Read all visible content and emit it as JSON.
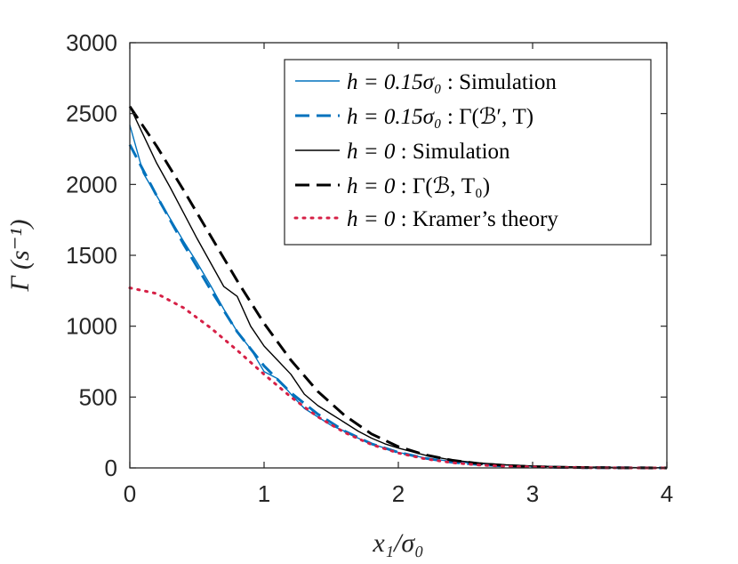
{
  "chart_data": {
    "type": "line",
    "xlabel": "x₁/σ₀",
    "ylabel": "Γ (s⁻¹)",
    "xlim": [
      0,
      4
    ],
    "ylim": [
      0,
      3000
    ],
    "xticks": [
      0,
      1,
      2,
      3,
      4
    ],
    "yticks": [
      0,
      500,
      1000,
      1500,
      2000,
      2500,
      3000
    ],
    "grid": false,
    "legend_position": "top-right",
    "series": [
      {
        "name": "h = 0.15σ₀ : Simulation",
        "color": "#0072BD",
        "style": "solid",
        "width": "thin",
        "x": [
          0,
          0.1,
          0.2,
          0.3,
          0.4,
          0.5,
          0.6,
          0.7,
          0.8,
          0.9,
          1.0,
          1.1,
          1.2,
          1.3,
          1.4,
          1.5,
          1.6,
          1.7,
          1.8,
          1.9,
          2.0,
          2.2,
          2.4,
          2.6,
          2.8,
          3.0,
          3.2,
          3.4,
          3.6,
          3.8,
          4.0
        ],
        "y": [
          2420,
          2080,
          1920,
          1760,
          1600,
          1450,
          1290,
          1120,
          960,
          840,
          680,
          630,
          520,
          420,
          360,
          300,
          260,
          210,
          170,
          140,
          110,
          70,
          45,
          30,
          20,
          12,
          8,
          5,
          3,
          2,
          1
        ]
      },
      {
        "name": "h = 0.15σ₀ : Γ(ℬ′, T)",
        "color": "#0072BD",
        "style": "dashed",
        "width": "thick",
        "x": [
          0,
          0.2,
          0.4,
          0.6,
          0.8,
          1.0,
          1.2,
          1.4,
          1.6,
          1.8,
          2.0,
          2.2,
          2.4,
          2.6,
          2.8,
          3.0,
          3.2,
          3.4,
          3.6,
          3.8,
          4.0
        ],
        "y": [
          2280,
          1920,
          1580,
          1260,
          960,
          720,
          530,
          380,
          260,
          170,
          110,
          68,
          40,
          23,
          13,
          7,
          4,
          2,
          1,
          0.5,
          0.2
        ]
      },
      {
        "name": "h = 0 : Simulation",
        "color": "#000000",
        "style": "solid",
        "width": "thin",
        "x": [
          0,
          0.1,
          0.2,
          0.3,
          0.4,
          0.5,
          0.6,
          0.7,
          0.8,
          0.9,
          1.0,
          1.1,
          1.2,
          1.3,
          1.4,
          1.5,
          1.6,
          1.7,
          1.8,
          1.9,
          2.0,
          2.2,
          2.4,
          2.6,
          2.8,
          3.0,
          3.2,
          3.4,
          3.6,
          3.8,
          4.0
        ],
        "y": [
          2550,
          2350,
          2150,
          1980,
          1800,
          1620,
          1450,
          1280,
          1210,
          1000,
          860,
          760,
          660,
          520,
          440,
          380,
          320,
          260,
          210,
          170,
          140,
          90,
          55,
          35,
          22,
          14,
          9,
          6,
          4,
          2,
          1
        ]
      },
      {
        "name": "h = 0 : Γ(ℬ, T₀)",
        "color": "#000000",
        "style": "dashed",
        "width": "thick",
        "x": [
          0,
          0.2,
          0.4,
          0.6,
          0.8,
          1.0,
          1.2,
          1.4,
          1.6,
          1.8,
          2.0,
          2.2,
          2.4,
          2.6,
          2.8,
          3.0,
          3.2,
          3.4,
          3.6,
          3.8,
          4.0
        ],
        "y": [
          2550,
          2270,
          1960,
          1640,
          1320,
          1020,
          760,
          540,
          370,
          240,
          150,
          92,
          54,
          31,
          17,
          9,
          5,
          2.5,
          1.2,
          0.6,
          0.3
        ]
      },
      {
        "name": "h = 0 : Kramer’s theory",
        "color": "#D62046",
        "style": "dotted",
        "width": "thick",
        "x": [
          0,
          0.2,
          0.4,
          0.6,
          0.8,
          1.0,
          1.2,
          1.4,
          1.6,
          1.8,
          2.0,
          2.2,
          2.4,
          2.6,
          2.8,
          3.0,
          3.2,
          3.4,
          3.6,
          3.8,
          4.0
        ],
        "y": [
          1270,
          1230,
          1130,
          990,
          830,
          660,
          500,
          360,
          250,
          165,
          105,
          64,
          37,
          21,
          11,
          6,
          3,
          1.5,
          0.7,
          0.3,
          0.1
        ]
      }
    ]
  },
  "legend": {
    "entries": [
      {
        "math": "h = 0.15σ₀",
        "sep": " : ",
        "desc": "Simulation"
      },
      {
        "math": "h = 0.15σ₀",
        "sep": " : ",
        "desc": "Γ(ℬ′, T)"
      },
      {
        "math": "h = 0",
        "sep": " : ",
        "desc": "Simulation"
      },
      {
        "math": "h = 0",
        "sep": " : ",
        "desc": "Γ(ℬ, T₀)"
      },
      {
        "math": "h = 0",
        "sep": " : ",
        "desc": "Kramer’s theory"
      }
    ]
  }
}
